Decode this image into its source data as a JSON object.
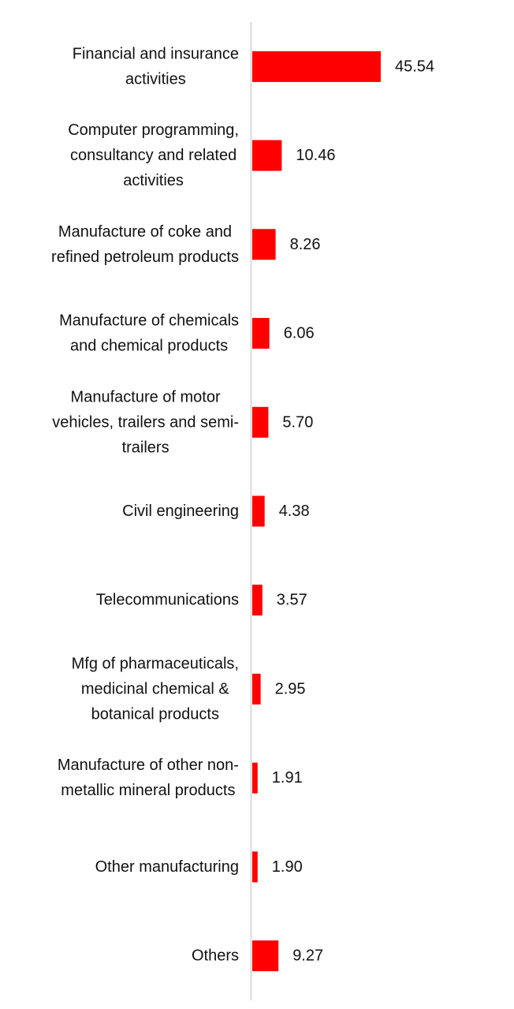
{
  "chart_data": {
    "type": "bar",
    "orientation": "horizontal",
    "title": "",
    "xlabel": "",
    "ylabel": "",
    "categories": [
      [
        "Financial and insurance",
        "activities"
      ],
      [
        "Computer programming,",
        "consultancy and related",
        "activities"
      ],
      [
        "Manufacture of coke and",
        "refined petroleum products"
      ],
      [
        "Manufacture of chemicals",
        "and chemical products"
      ],
      [
        "Manufacture of motor",
        "vehicles, trailers and semi-",
        "trailers"
      ],
      [
        "Civil engineering"
      ],
      [
        "Telecommunications"
      ],
      [
        "Mfg of pharmaceuticals,",
        "medicinal chemical &",
        "botanical products"
      ],
      [
        "Manufacture of other non-",
        "metallic mineral products"
      ],
      [
        "Other manufacturing"
      ],
      [
        "Others"
      ]
    ],
    "values": [
      45.54,
      10.46,
      8.26,
      6.06,
      5.7,
      4.38,
      3.57,
      2.95,
      1.91,
      1.9,
      9.27
    ],
    "value_labels": [
      "45.54",
      "10.46",
      "8.26",
      "6.06",
      "5.70",
      "4.38",
      "3.57",
      "2.95",
      "1.91",
      "1.90",
      "9.27"
    ],
    "xlim": [
      0,
      100
    ],
    "bar_color": "#ff0000",
    "axis_color": "#d9d9d9",
    "grid": false,
    "legend": "none",
    "data_labels": true
  }
}
